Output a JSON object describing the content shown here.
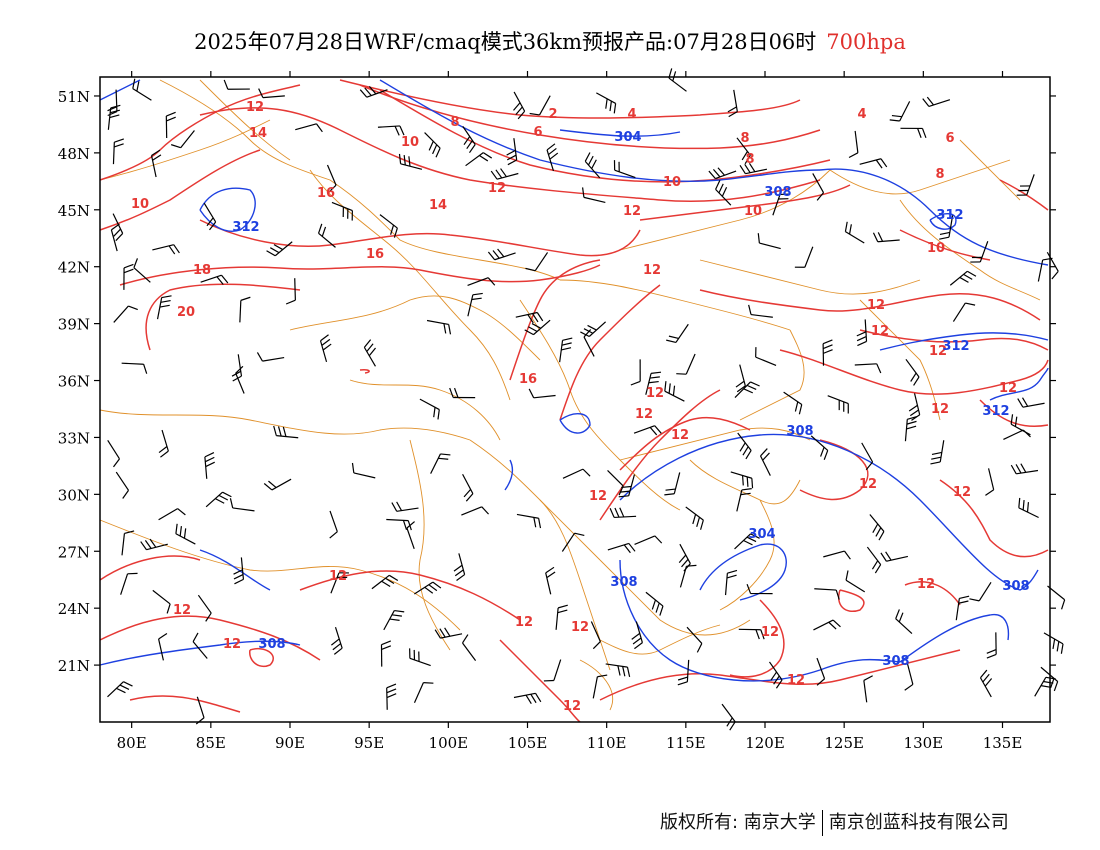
{
  "title": {
    "main": "2025年07月28日WRF/cmaq模式36km预报产品:07月28日06时",
    "level": "700hpa"
  },
  "map": {
    "lat_labels": [
      "51N",
      "48N",
      "45N",
      "42N",
      "39N",
      "36N",
      "33N",
      "30N",
      "27N",
      "24N",
      "21N"
    ],
    "lon_labels": [
      "80E",
      "85E",
      "90E",
      "95E",
      "100E",
      "105E",
      "110E",
      "115E",
      "120E",
      "125E",
      "130E",
      "135E"
    ],
    "lon_range": [
      78,
      138
    ],
    "lat_range": [
      18,
      52
    ],
    "temperature_labels": [
      "2",
      "4",
      "6",
      "8",
      "10",
      "12",
      "14",
      "16",
      "18",
      "20"
    ],
    "geopotential_labels": [
      "304",
      "308",
      "312"
    ],
    "colors": {
      "temperature": "#e53935",
      "geopotential": "#1e40e0",
      "boundaries": "#e0902a",
      "wind_barbs": "#000000",
      "level_text": "#e0302c"
    }
  },
  "footer": {
    "copyright": "版权所有: 南京大学",
    "company": "南京创蓝科技有限公司"
  }
}
